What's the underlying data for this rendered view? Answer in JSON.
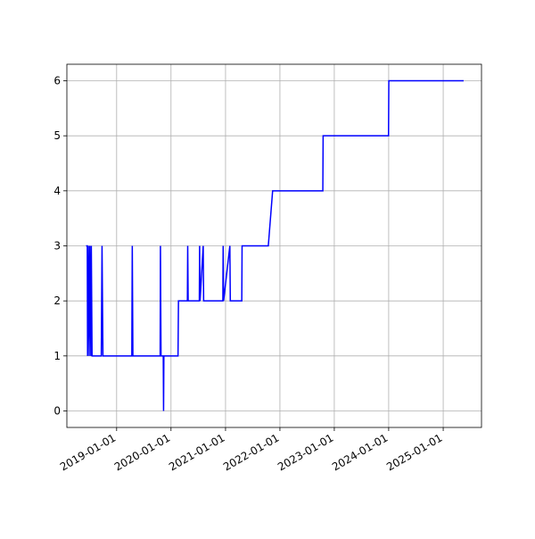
{
  "chart_data": {
    "type": "line",
    "color": "#0000ff",
    "grid": true,
    "x": [
      "2018-06-10",
      "2018-06-18",
      "2018-06-20",
      "2018-06-25",
      "2018-07-01",
      "2018-07-05",
      "2018-07-12",
      "2018-07-15",
      "2018-07-20",
      "2018-09-20",
      "2018-09-25",
      "2018-10-01",
      "2019-04-13",
      "2019-04-16",
      "2019-04-20",
      "2019-10-20",
      "2019-10-22",
      "2019-10-26",
      "2019-11-10",
      "2019-11-12",
      "2019-11-14",
      "2020-02-17",
      "2020-02-20",
      "2020-04-20",
      "2020-04-22",
      "2020-04-25",
      "2020-07-09",
      "2020-07-11",
      "2020-07-14",
      "2020-08-04",
      "2020-08-07",
      "2020-12-14",
      "2020-12-16",
      "2020-12-19",
      "2021-01-30",
      "2021-02-02",
      "2021-04-20",
      "2021-04-22",
      "2021-10-15",
      "2021-11-13",
      "2022-10-16",
      "2022-10-18",
      "2023-12-31",
      "2024-01-02",
      "2025-05-18"
    ],
    "values": [
      3,
      3,
      1,
      3,
      1,
      3,
      1,
      3,
      1,
      1,
      3,
      1,
      1,
      3,
      1,
      1,
      3,
      1,
      1,
      0,
      1,
      1,
      2,
      2,
      3,
      2,
      2,
      3,
      2,
      3,
      2,
      2,
      3,
      2,
      3,
      2,
      2,
      3,
      3,
      4,
      4,
      5,
      5,
      6,
      6
    ],
    "xlim": [
      "2018-02-01",
      "2025-09-15"
    ],
    "xticks": [
      "2019-01-01",
      "2020-01-01",
      "2021-01-01",
      "2022-01-01",
      "2023-01-01",
      "2024-01-01",
      "2025-01-01"
    ],
    "ylim": [
      -0.3,
      6.3
    ],
    "yticks": [
      0,
      1,
      2,
      3,
      4,
      5,
      6
    ]
  }
}
